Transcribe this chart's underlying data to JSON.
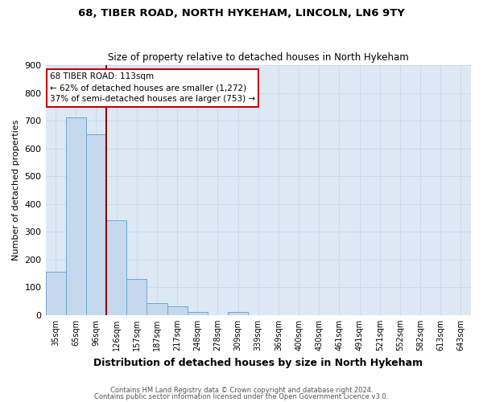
{
  "title1": "68, TIBER ROAD, NORTH HYKEHAM, LINCOLN, LN6 9TY",
  "title2": "Size of property relative to detached houses in North Hykeham",
  "xlabel": "Distribution of detached houses by size in North Hykeham",
  "ylabel": "Number of detached properties",
  "categories": [
    "35sqm",
    "65sqm",
    "96sqm",
    "126sqm",
    "157sqm",
    "187sqm",
    "217sqm",
    "248sqm",
    "278sqm",
    "309sqm",
    "339sqm",
    "369sqm",
    "400sqm",
    "430sqm",
    "461sqm",
    "491sqm",
    "521sqm",
    "552sqm",
    "582sqm",
    "613sqm",
    "643sqm"
  ],
  "values": [
    155,
    713,
    651,
    341,
    131,
    42,
    30,
    11,
    0,
    10,
    0,
    0,
    0,
    0,
    0,
    0,
    0,
    0,
    0,
    0,
    0
  ],
  "bar_color": "#c5d8ee",
  "bar_edge_color": "#6aaad4",
  "grid_color": "#c8d8e8",
  "bg_color": "#dce9f5",
  "vline_color": "#8B0000",
  "annotation_text": "68 TIBER ROAD: 113sqm\n← 62% of detached houses are smaller (1,272)\n37% of semi-detached houses are larger (753) →",
  "annotation_box_color": "#ffffff",
  "annotation_box_edge": "#cc0000",
  "footer1": "Contains HM Land Registry data © Crown copyright and database right 2024.",
  "footer2": "Contains public sector information licensed under the Open Government Licence v3.0.",
  "ylim": [
    0,
    900
  ],
  "yticks": [
    0,
    100,
    200,
    300,
    400,
    500,
    600,
    700,
    800,
    900
  ]
}
